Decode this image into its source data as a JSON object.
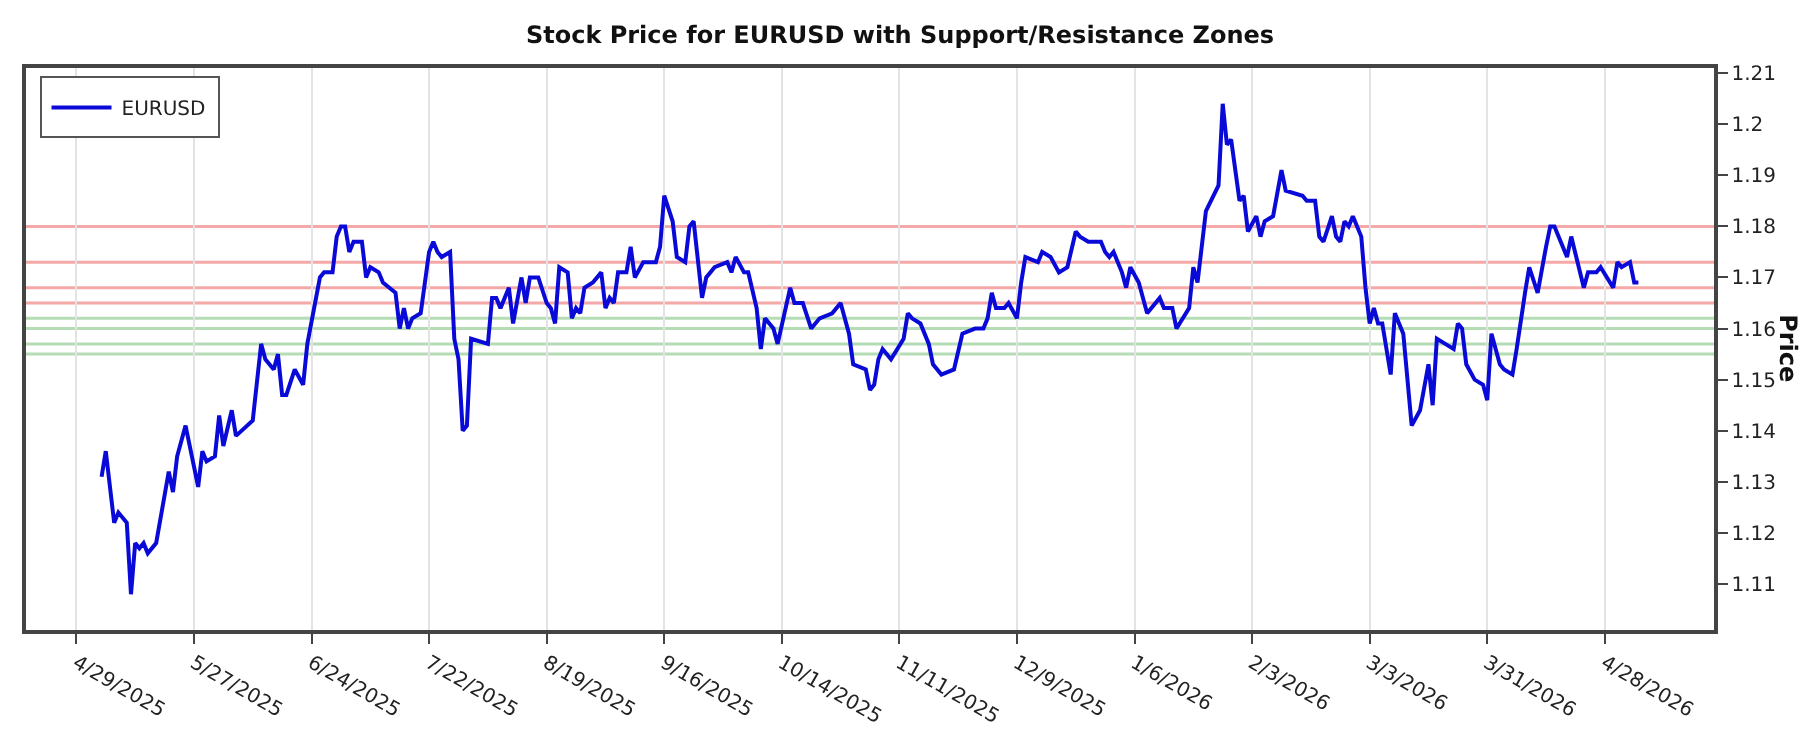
{
  "chart_data": {
    "type": "line",
    "title": "Stock Price for EURUSD with Support/Resistance Zones",
    "ylabel": "Price",
    "x": [
      "2025-05-05",
      "2025-05-06",
      "2025-05-08",
      "2025-05-09",
      "2025-05-11",
      "2025-05-12",
      "2025-05-13",
      "2025-05-14",
      "2025-05-15",
      "2025-05-16",
      "2025-05-18",
      "2025-05-21",
      "2025-05-22",
      "2025-05-23",
      "2025-05-25",
      "2025-05-28",
      "2025-05-29",
      "2025-05-30",
      "2025-06-01",
      "2025-06-02",
      "2025-06-03",
      "2025-06-05",
      "2025-06-06",
      "2025-06-10",
      "2025-06-12",
      "2025-06-13",
      "2025-06-15",
      "2025-06-16",
      "2025-06-17",
      "2025-06-18",
      "2025-06-20",
      "2025-06-22",
      "2025-06-23",
      "2025-06-26",
      "2025-06-27",
      "2025-06-29",
      "2025-06-30",
      "2025-07-01",
      "2025-07-02",
      "2025-07-03",
      "2025-07-04",
      "2025-07-06",
      "2025-07-07",
      "2025-07-08",
      "2025-07-10",
      "2025-07-11",
      "2025-07-14",
      "2025-07-15",
      "2025-07-16",
      "2025-07-17",
      "2025-07-18",
      "2025-07-20",
      "2025-07-22",
      "2025-07-23",
      "2025-07-24",
      "2025-07-25",
      "2025-07-27",
      "2025-07-28",
      "2025-07-29",
      "2025-07-30",
      "2025-07-31",
      "2025-08-01",
      "2025-08-05",
      "2025-08-06",
      "2025-08-07",
      "2025-08-08",
      "2025-08-10",
      "2025-08-11",
      "2025-08-13",
      "2025-08-14",
      "2025-08-15",
      "2025-08-17",
      "2025-08-19",
      "2025-08-20",
      "2025-08-21",
      "2025-08-22",
      "2025-08-24",
      "2025-08-25",
      "2025-08-26",
      "2025-08-27",
      "2025-08-28",
      "2025-08-30",
      "2025-09-01",
      "2025-09-02",
      "2025-09-03",
      "2025-09-04",
      "2025-09-05",
      "2025-09-07",
      "2025-09-08",
      "2025-09-09",
      "2025-09-11",
      "2025-09-14",
      "2025-09-15",
      "2025-09-16",
      "2025-09-18",
      "2025-09-19",
      "2025-09-21",
      "2025-09-22",
      "2025-09-23",
      "2025-09-25",
      "2025-09-26",
      "2025-09-28",
      "2025-10-01",
      "2025-10-02",
      "2025-10-03",
      "2025-10-05",
      "2025-10-06",
      "2025-10-08",
      "2025-10-09",
      "2025-10-10",
      "2025-10-12",
      "2025-10-13",
      "2025-10-16",
      "2025-10-17",
      "2025-10-19",
      "2025-10-21",
      "2025-10-23",
      "2025-10-26",
      "2025-10-28",
      "2025-10-30",
      "2025-10-31",
      "2025-11-03",
      "2025-11-04",
      "2025-11-05",
      "2025-11-06",
      "2025-11-07",
      "2025-11-09",
      "2025-11-12",
      "2025-11-13",
      "2025-11-14",
      "2025-11-16",
      "2025-11-18",
      "2025-11-19",
      "2025-11-21",
      "2025-11-24",
      "2025-11-26",
      "2025-11-29",
      "2025-12-01",
      "2025-12-02",
      "2025-12-03",
      "2025-12-04",
      "2025-12-06",
      "2025-12-07",
      "2025-12-09",
      "2025-12-10",
      "2025-12-11",
      "2025-12-14",
      "2025-12-15",
      "2025-12-17",
      "2025-12-19",
      "2025-12-21",
      "2025-12-23",
      "2025-12-24",
      "2025-12-26",
      "2025-12-29",
      "2025-12-30",
      "2025-12-31",
      "2026-01-01",
      "2026-01-03",
      "2026-01-04",
      "2026-01-05",
      "2026-01-07",
      "2026-01-09",
      "2026-01-12",
      "2026-01-13",
      "2026-01-15",
      "2026-01-16",
      "2026-01-19",
      "2026-01-20",
      "2026-01-21",
      "2026-01-23",
      "2026-01-26",
      "2026-01-27",
      "2026-01-28",
      "2026-01-29",
      "2026-01-31",
      "2026-02-01",
      "2026-02-02",
      "2026-02-04",
      "2026-02-05",
      "2026-02-06",
      "2026-02-08",
      "2026-02-10",
      "2026-02-11",
      "2026-02-15",
      "2026-02-16",
      "2026-02-18",
      "2026-02-19",
      "2026-02-20",
      "2026-02-22",
      "2026-02-23",
      "2026-02-24",
      "2026-02-25",
      "2026-02-26",
      "2026-02-27",
      "2026-03-01",
      "2026-03-02",
      "2026-03-03",
      "2026-03-04",
      "2026-03-05",
      "2026-03-06",
      "2026-03-08",
      "2026-03-09",
      "2026-03-11",
      "2026-03-13",
      "2026-03-15",
      "2026-03-17",
      "2026-03-18",
      "2026-03-19",
      "2026-03-21",
      "2026-03-23",
      "2026-03-24",
      "2026-03-25",
      "2026-03-26",
      "2026-03-28",
      "2026-03-30",
      "2026-03-31",
      "2026-04-01",
      "2026-04-03",
      "2026-04-04",
      "2026-04-06",
      "2026-04-07",
      "2026-04-09",
      "2026-04-10",
      "2026-04-12",
      "2026-04-14",
      "2026-04-15",
      "2026-04-16",
      "2026-04-19",
      "2026-04-20",
      "2026-04-23",
      "2026-04-24",
      "2026-04-26",
      "2026-04-27",
      "2026-04-30",
      "2026-05-01",
      "2026-05-02",
      "2026-05-04",
      "2026-05-05",
      "2026-05-06"
    ],
    "series": [
      {
        "name": "EURUSD",
        "color": "#0a0ad8",
        "values": [
          1.131,
          1.136,
          1.122,
          1.124,
          1.122,
          1.108,
          1.118,
          1.117,
          1.118,
          1.116,
          1.118,
          1.132,
          1.128,
          1.135,
          1.141,
          1.129,
          1.136,
          1.134,
          1.135,
          1.143,
          1.137,
          1.144,
          1.139,
          1.142,
          1.157,
          1.154,
          1.152,
          1.155,
          1.147,
          1.147,
          1.152,
          1.149,
          1.157,
          1.17,
          1.171,
          1.171,
          1.178,
          1.18,
          1.18,
          1.175,
          1.177,
          1.177,
          1.17,
          1.172,
          1.171,
          1.169,
          1.167,
          1.16,
          1.164,
          1.16,
          1.162,
          1.163,
          1.175,
          1.177,
          1.175,
          1.174,
          1.175,
          1.158,
          1.154,
          1.14,
          1.141,
          1.158,
          1.157,
          1.166,
          1.166,
          1.164,
          1.168,
          1.161,
          1.17,
          1.165,
          1.17,
          1.17,
          1.165,
          1.164,
          1.161,
          1.172,
          1.171,
          1.162,
          1.164,
          1.163,
          1.168,
          1.169,
          1.171,
          1.164,
          1.166,
          1.165,
          1.171,
          1.171,
          1.176,
          1.17,
          1.173,
          1.173,
          1.176,
          1.186,
          1.181,
          1.174,
          1.173,
          1.18,
          1.181,
          1.166,
          1.17,
          1.172,
          1.173,
          1.171,
          1.174,
          1.171,
          1.171,
          1.164,
          1.156,
          1.162,
          1.16,
          1.157,
          1.168,
          1.165,
          1.165,
          1.16,
          1.162,
          1.163,
          1.165,
          1.159,
          1.153,
          1.152,
          1.148,
          1.149,
          1.154,
          1.156,
          1.154,
          1.158,
          1.163,
          1.162,
          1.161,
          1.157,
          1.153,
          1.151,
          1.152,
          1.159,
          1.16,
          1.16,
          1.162,
          1.167,
          1.164,
          1.164,
          1.165,
          1.162,
          1.169,
          1.174,
          1.173,
          1.175,
          1.174,
          1.171,
          1.172,
          1.179,
          1.178,
          1.177,
          1.177,
          1.175,
          1.174,
          1.175,
          1.171,
          1.168,
          1.172,
          1.169,
          1.163,
          1.166,
          1.164,
          1.164,
          1.16,
          1.164,
          1.172,
          1.169,
          1.183,
          1.188,
          1.204,
          1.196,
          1.197,
          1.185,
          1.186,
          1.179,
          1.182,
          1.178,
          1.181,
          1.182,
          1.191,
          1.187,
          1.186,
          1.185,
          1.185,
          1.178,
          1.177,
          1.182,
          1.178,
          1.177,
          1.181,
          1.18,
          1.182,
          1.178,
          1.168,
          1.161,
          1.164,
          1.161,
          1.161,
          1.151,
          1.163,
          1.159,
          1.141,
          1.144,
          1.153,
          1.145,
          1.158,
          1.157,
          1.156,
          1.161,
          1.16,
          1.153,
          1.15,
          1.149,
          1.146,
          1.159,
          1.153,
          1.152,
          1.151,
          1.156,
          1.167,
          1.172,
          1.167,
          1.176,
          1.18,
          1.18,
          1.174,
          1.178,
          1.168,
          1.171,
          1.171,
          1.172,
          1.168,
          1.173,
          1.172,
          1.173,
          1.169,
          1.169
        ]
      }
    ],
    "xlim": [
      "2025-04-17",
      "2026-05-24"
    ],
    "xticks": [
      {
        "value": "2025-04-29",
        "label": "4/29/2025"
      },
      {
        "value": "2025-05-27",
        "label": "5/27/2025"
      },
      {
        "value": "2025-06-24",
        "label": "6/24/2025"
      },
      {
        "value": "2025-07-22",
        "label": "7/22/2025"
      },
      {
        "value": "2025-08-19",
        "label": "8/19/2025"
      },
      {
        "value": "2025-09-16",
        "label": "9/16/2025"
      },
      {
        "value": "2025-10-14",
        "label": "10/14/2025"
      },
      {
        "value": "2025-11-11",
        "label": "11/11/2025"
      },
      {
        "value": "2025-12-09",
        "label": "12/9/2025"
      },
      {
        "value": "2026-01-06",
        "label": "1/6/2026"
      },
      {
        "value": "2026-02-03",
        "label": "2/3/2026"
      },
      {
        "value": "2026-03-03",
        "label": "3/3/2026"
      },
      {
        "value": "2026-03-31",
        "label": "3/31/2026"
      },
      {
        "value": "2026-04-28",
        "label": "4/28/2026"
      }
    ],
    "ylim": [
      1.101,
      1.211
    ],
    "yticks": [
      1.11,
      1.12,
      1.13,
      1.14,
      1.15,
      1.16,
      1.17,
      1.18,
      1.19,
      1.2,
      1.21
    ],
    "ref_lines": [
      {
        "axis": "y",
        "value": 1.18,
        "color": "#f4a8a8"
      },
      {
        "axis": "y",
        "value": 1.173,
        "color": "#f4a8a8"
      },
      {
        "axis": "y",
        "value": 1.168,
        "color": "#f4a8a8"
      },
      {
        "axis": "y",
        "value": 1.165,
        "color": "#f4a8a8"
      },
      {
        "axis": "y",
        "value": 1.162,
        "color": "#b5dcb5"
      },
      {
        "axis": "y",
        "value": 1.16,
        "color": "#b5dcb5"
      },
      {
        "axis": "y",
        "value": 1.157,
        "color": "#b5dcb5"
      },
      {
        "axis": "y",
        "value": 1.155,
        "color": "#b5dcb5"
      }
    ],
    "grid": "x",
    "legend": "top left",
    "marker": "none",
    "line_style": "solid"
  }
}
